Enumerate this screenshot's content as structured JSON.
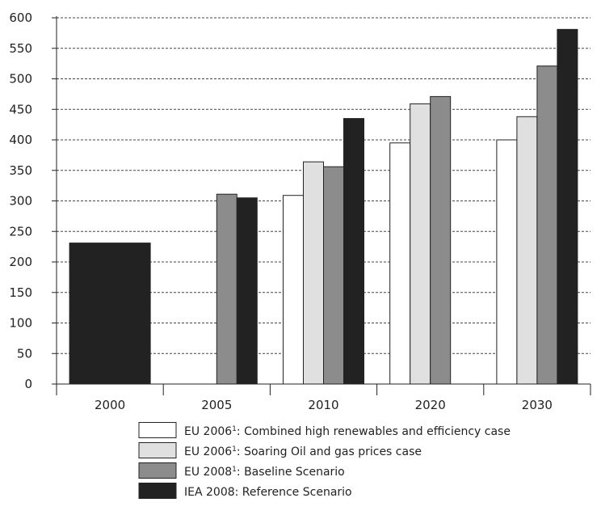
{
  "chart_data": {
    "type": "bar",
    "categories": [
      "2000",
      "2005",
      "2010",
      "2020",
      "2030"
    ],
    "series": [
      {
        "name": "EU 2006¹: Combined high renewables and efficiency case",
        "color": "#ffffff",
        "values": [
          null,
          null,
          309,
          395,
          400
        ]
      },
      {
        "name": "EU 2006¹: Soaring Oil and  gas prices case",
        "color": "#e0e0e0",
        "values": [
          null,
          null,
          364,
          459,
          438
        ]
      },
      {
        "name": "EU 2008¹: Baseline Scenario",
        "color": "#8c8c8c",
        "values": [
          null,
          311,
          356,
          471,
          521
        ]
      },
      {
        "name": "IEA 2008: Reference Scenario",
        "color": "#222222",
        "values": [
          null,
          305,
          435,
          null,
          581
        ]
      }
    ],
    "combined_bars": [
      {
        "category": "2000",
        "value": 231,
        "color": "#222222"
      }
    ],
    "yticks": [
      0,
      50,
      100,
      150,
      200,
      250,
      300,
      350,
      400,
      450,
      500,
      550,
      600
    ],
    "ylim": [
      0,
      600
    ],
    "grid": "dashed horizontal",
    "legend_position": "bottom",
    "title": "",
    "xlabel": "",
    "ylabel": ""
  }
}
